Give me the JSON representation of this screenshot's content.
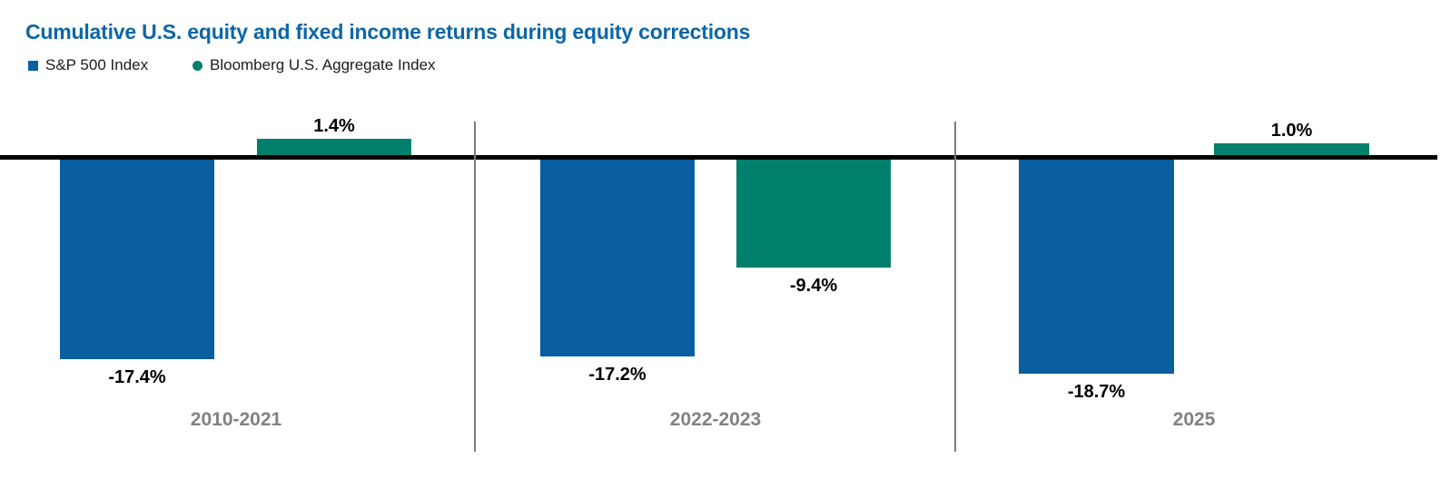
{
  "chart_data": {
    "type": "bar",
    "title": "Cumulative U.S. equity and fixed income returns during equity corrections",
    "title_color": "#0c66a7",
    "categories": [
      "2010-2021",
      "2022-2023",
      "2025"
    ],
    "series": [
      {
        "name": "S&P 500 Index",
        "color": "#085e9f",
        "marker": "square",
        "values": [
          -17.4,
          -17.2,
          -18.7
        ],
        "labels": [
          "-17.4%",
          "-17.2%",
          "-18.7%"
        ]
      },
      {
        "name": "Bloomberg U.S. Aggregate Index",
        "color": "#007f6c",
        "marker": "circle",
        "values": [
          1.4,
          -9.4,
          1.0
        ],
        "labels": [
          "1.4%",
          "-9.4%",
          "1.0%"
        ]
      }
    ],
    "unit": "%",
    "baseline": 0,
    "grid": false,
    "legend_position": "top-left",
    "value_labels": true,
    "axis_line_color": "#000000",
    "divider_color": "#7b7b7b",
    "category_label_color": "#808285",
    "ylim": [
      -20,
      3
    ]
  }
}
